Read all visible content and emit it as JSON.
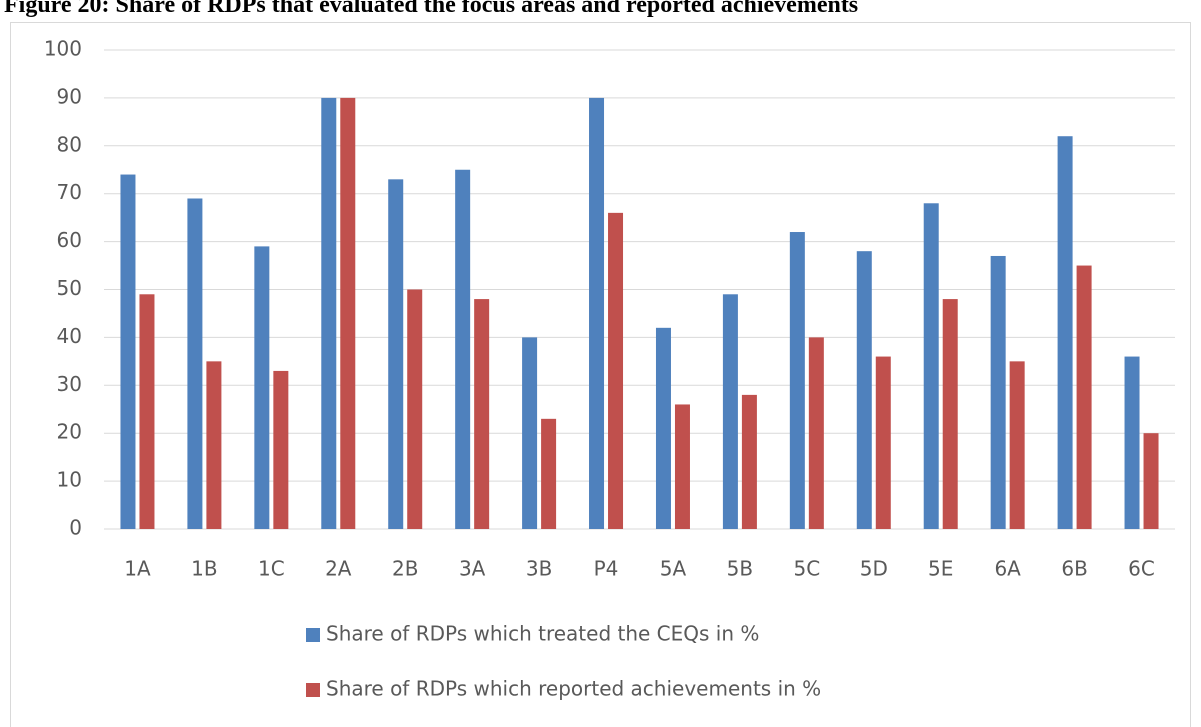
{
  "chart_data": {
    "type": "bar",
    "title": "Figure 20: Share of RDPs that evaluated the focus areas and reported achievements",
    "categories": [
      "1A",
      "1B",
      "1C",
      "2A",
      "2B",
      "3A",
      "3B",
      "P4",
      "5A",
      "5B",
      "5C",
      "5D",
      "5E",
      "6A",
      "6B",
      "6C"
    ],
    "series": [
      {
        "name": "Share of RDPs which treated the CEQs in %",
        "color": "#4f81bd",
        "values": [
          74,
          69,
          59,
          90,
          73,
          75,
          40,
          90,
          42,
          49,
          62,
          58,
          68,
          57,
          82,
          36
        ]
      },
      {
        "name": "Share of RDPs which reported achievements in %",
        "color": "#c0504d",
        "values": [
          49,
          35,
          33,
          90,
          50,
          48,
          23,
          66,
          26,
          28,
          40,
          36,
          48,
          35,
          55,
          20
        ]
      }
    ],
    "ylim": [
      0,
      100
    ],
    "yticks": [
      0,
      10,
      20,
      30,
      40,
      50,
      60,
      70,
      80,
      90,
      100
    ],
    "grid": true,
    "legend": "bottom"
  }
}
